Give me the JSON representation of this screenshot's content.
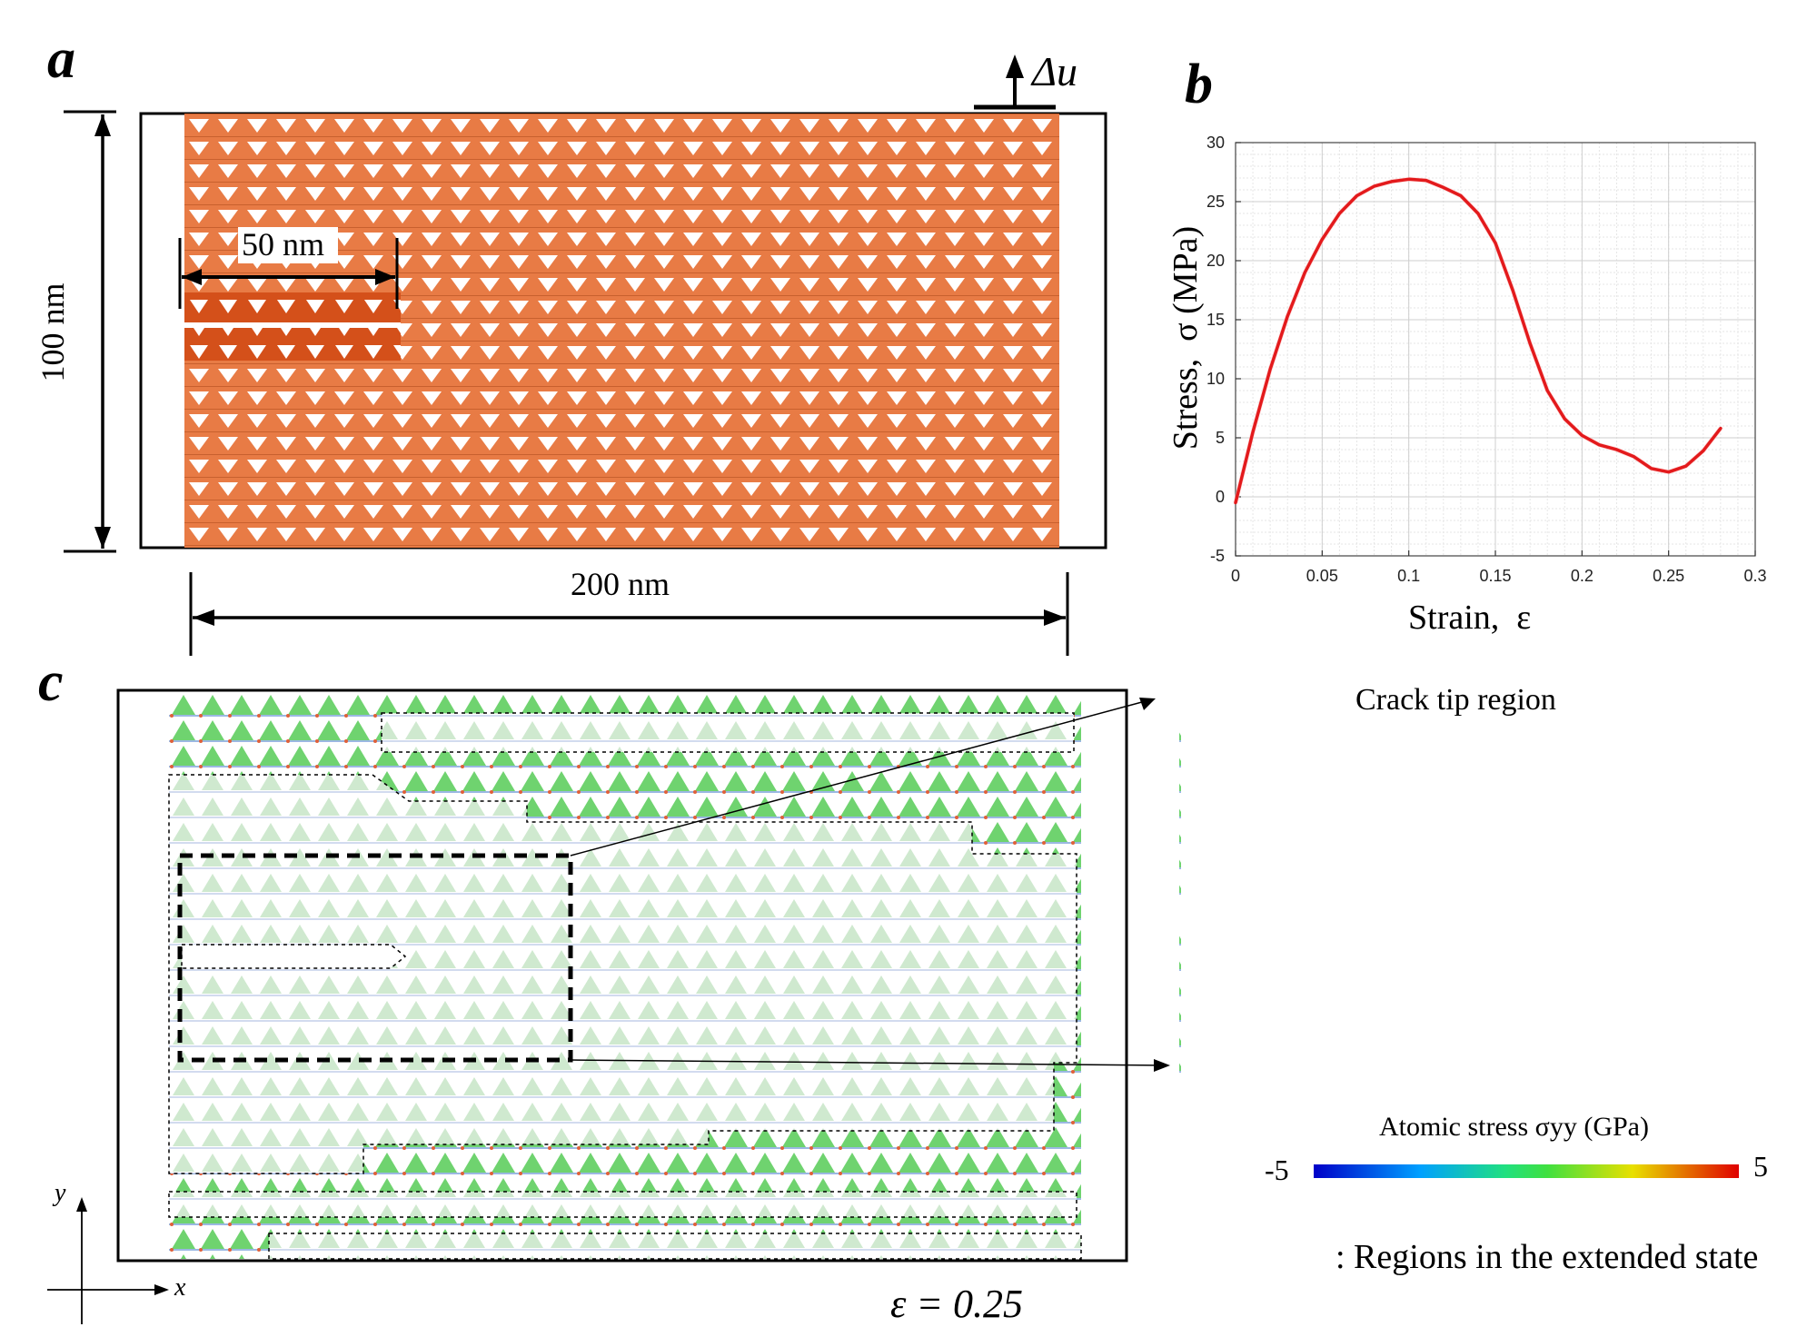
{
  "panel_a": {
    "label": "a",
    "height_dim": "100 nm",
    "width_dim": "200 nm",
    "crack_dim": "50 nm",
    "load": "Δu",
    "lattice_color": "#E87B45",
    "crack_color": "#D4501A"
  },
  "panel_b": {
    "label": "b"
  },
  "panel_c": {
    "label": "c",
    "inset_title": "Crack tip region",
    "strain_value": "ε = 0.25",
    "axis_x": "x",
    "axis_y": "y",
    "colorbar_title": "Atomic stress σyy (GPa)",
    "colorbar_min": "-5",
    "colorbar_max": "5",
    "legend_text": ": Regions in the extended state",
    "lattice_color": "#6FD36F"
  },
  "chart_data": {
    "type": "line",
    "xlabel": "Strain,  ε",
    "ylabel": "Stress,  σ (MPa)",
    "xlim": [
      0,
      0.3
    ],
    "ylim": [
      -5,
      30
    ],
    "xticks": [
      "0",
      "0.05",
      "0.1",
      "0.15",
      "0.2",
      "0.25",
      "0.3"
    ],
    "yticks": [
      "-5",
      "0",
      "5",
      "10",
      "15",
      "20",
      "25",
      "30"
    ],
    "grid": true,
    "series": [
      {
        "color": "#E31A1C",
        "x": [
          0,
          0.01,
          0.02,
          0.03,
          0.04,
          0.05,
          0.06,
          0.07,
          0.08,
          0.09,
          0.1,
          0.11,
          0.12,
          0.13,
          0.14,
          0.15,
          0.16,
          0.17,
          0.18,
          0.19,
          0.2,
          0.21,
          0.22,
          0.23,
          0.24,
          0.25,
          0.26,
          0.27,
          0.28
        ],
        "y": [
          -0.5,
          5.5,
          10.8,
          15.3,
          19.0,
          21.8,
          24.0,
          25.5,
          26.3,
          26.7,
          26.9,
          26.8,
          26.2,
          25.5,
          24.0,
          21.5,
          17.5,
          13.0,
          9.0,
          6.6,
          5.2,
          4.4,
          4.0,
          3.4,
          2.4,
          2.1,
          2.6,
          3.9,
          5.8
        ]
      }
    ]
  }
}
